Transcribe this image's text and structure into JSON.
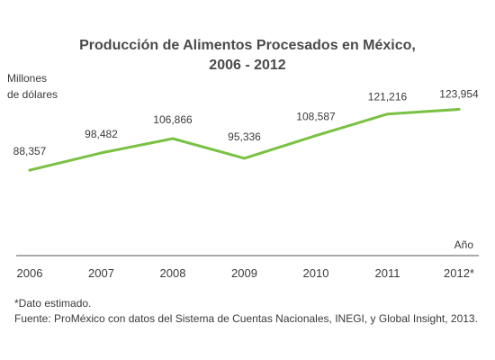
{
  "chart_data": {
    "type": "line",
    "title_line1": "Producción de Alimentos Procesados en México,",
    "title_line2": "2006 - 2012",
    "ylabel_line1": "Millones",
    "ylabel_line2": "de dólares",
    "xlabel": "Año",
    "categories": [
      "2006",
      "2007",
      "2008",
      "2009",
      "2010",
      "2011",
      "2012*"
    ],
    "values": [
      88357,
      98482,
      106866,
      95336,
      108587,
      121216,
      123954
    ],
    "data_labels": [
      "88,357",
      "98,482",
      "106,866",
      "95,336",
      "108,587",
      "121,216",
      "123,954"
    ],
    "ylim": [
      50000,
      130000
    ],
    "line_color": "#7ac143",
    "axis_color": "#555555",
    "grid": false
  },
  "footnote": "*Dato estimado.",
  "source": "Fuente: ProMéxico con datos del Sistema de Cuentas Nacionales, INEGI, y Global Insight, 2013."
}
